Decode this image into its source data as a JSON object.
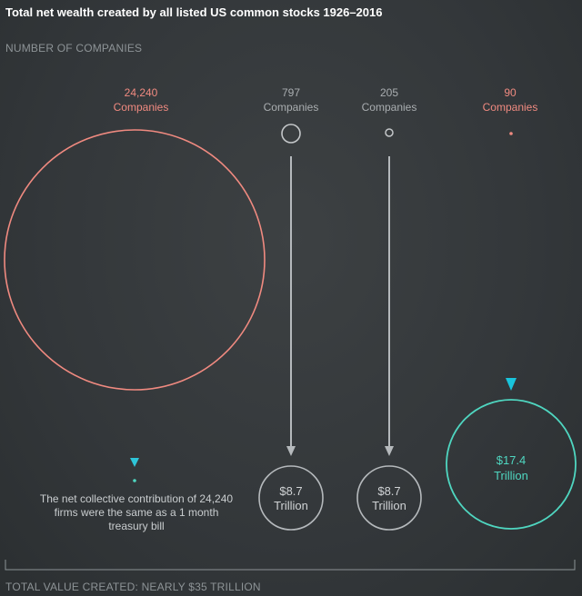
{
  "title": "Total net wealth created by all listed US common stocks 1926–2016",
  "section_label": "NUMBER OF COMPANIES",
  "footer_label": "TOTAL VALUE CREATED: NEARLY $35 TRILLION",
  "note": "The net collective contribution of 24,240 firms were the same as a 1 month treasury bill",
  "colors": {
    "background": "#33373a",
    "salmon": "#f08a80",
    "gray": "#b5b9bc",
    "teal": "#4fd6c0",
    "cyan": "#2ec5d8",
    "text_light": "#c9cdcf"
  },
  "chart_data": {
    "type": "bubble",
    "title": "Total net wealth created by all listed US common stocks 1926–2016",
    "groups": [
      {
        "count_label": "24,240",
        "unit_label": "Companies",
        "companies": 24240,
        "value_label": "",
        "value_trillion": 0,
        "color": "salmon"
      },
      {
        "count_label": "797",
        "unit_label": "Companies",
        "companies": 797,
        "value_label_1": "$8.7",
        "value_label_2": "Trillion",
        "value_trillion": 8.7,
        "color": "gray"
      },
      {
        "count_label": "205",
        "unit_label": "Companies",
        "companies": 205,
        "value_label_1": "$8.7",
        "value_label_2": "Trillion",
        "value_trillion": 8.7,
        "color": "gray"
      },
      {
        "count_label": "90",
        "unit_label": "Companies",
        "companies": 90,
        "value_label_1": "$17.4",
        "value_label_2": "Trillion",
        "value_trillion": 17.4,
        "color": "teal"
      }
    ],
    "total_label": "TOTAL VALUE CREATED: NEARLY $35 TRILLION"
  }
}
